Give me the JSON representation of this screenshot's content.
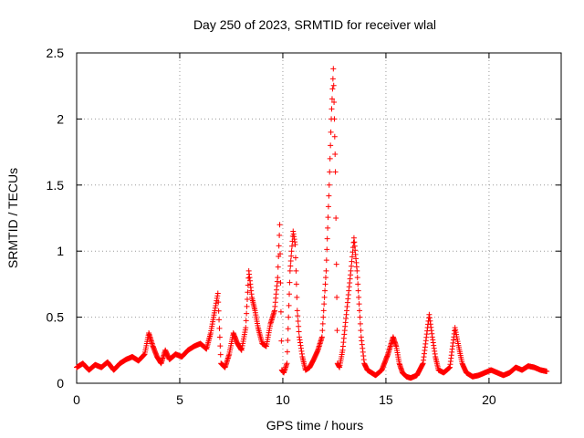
{
  "chart_data": {
    "type": "scatter",
    "title": "Day 250 of 2023, SRMTID for receiver wlal",
    "xlabel": "GPS time / hours",
    "ylabel": "SRMTID / TECUs",
    "xlim": [
      0,
      23.5
    ],
    "ylim": [
      0,
      2.5
    ],
    "x_ticks": [
      0,
      5,
      10,
      15,
      20
    ],
    "x_tick_labels": [
      "0",
      "5",
      "10",
      "15",
      "20"
    ],
    "y_ticks": [
      0,
      0.5,
      1,
      1.5,
      2,
      2.5
    ],
    "y_tick_labels": [
      "0",
      "0.5",
      "1",
      "1.5",
      "2",
      "2.5"
    ],
    "grid": true,
    "marker": "+",
    "color": "#ff0000",
    "series": [
      {
        "name": "SRMTID",
        "x": [
          0.0,
          0.3,
          0.6,
          0.9,
          1.2,
          1.5,
          1.8,
          2.1,
          2.4,
          2.7,
          3.0,
          3.3,
          3.5,
          3.7,
          3.9,
          4.1,
          4.3,
          4.5,
          4.8,
          5.1,
          5.4,
          5.7,
          6.0,
          6.3,
          6.5,
          6.7,
          6.85,
          7.0,
          7.2,
          7.4,
          7.6,
          7.8,
          8.0,
          8.2,
          8.35,
          8.5,
          8.65,
          8.8,
          9.0,
          9.2,
          9.4,
          9.6,
          9.75,
          9.85,
          9.95,
          10.05,
          10.2,
          10.35,
          10.5,
          10.6,
          10.7,
          10.8,
          10.95,
          11.1,
          11.3,
          11.5,
          11.7,
          11.9,
          12.1,
          12.25,
          12.35,
          12.45,
          12.5,
          12.55,
          12.6,
          12.65,
          12.75,
          12.9,
          13.1,
          13.3,
          13.45,
          13.6,
          13.7,
          13.8,
          13.95,
          14.1,
          14.3,
          14.5,
          14.8,
          15.1,
          15.35,
          15.5,
          15.65,
          15.8,
          16.0,
          16.2,
          16.5,
          16.8,
          17.1,
          17.25,
          17.4,
          17.55,
          17.8,
          18.1,
          18.35,
          18.5,
          18.7,
          18.9,
          19.2,
          19.5,
          19.8,
          20.1,
          20.4,
          20.7,
          21.0,
          21.3,
          21.6,
          21.9,
          22.2,
          22.5,
          22.8
        ],
        "values": [
          0.12,
          0.15,
          0.1,
          0.14,
          0.12,
          0.16,
          0.1,
          0.15,
          0.18,
          0.2,
          0.17,
          0.22,
          0.38,
          0.28,
          0.2,
          0.15,
          0.25,
          0.18,
          0.22,
          0.2,
          0.25,
          0.28,
          0.3,
          0.26,
          0.38,
          0.55,
          0.68,
          0.15,
          0.12,
          0.22,
          0.38,
          0.3,
          0.25,
          0.42,
          0.85,
          0.65,
          0.55,
          0.42,
          0.3,
          0.28,
          0.45,
          0.55,
          0.8,
          1.2,
          0.1,
          0.08,
          0.15,
          0.85,
          1.15,
          1.05,
          0.55,
          0.35,
          0.2,
          0.1,
          0.12,
          0.18,
          0.25,
          0.35,
          0.85,
          1.5,
          2.0,
          2.38,
          2.0,
          1.6,
          0.9,
          0.15,
          0.12,
          0.25,
          0.55,
          0.85,
          1.1,
          0.85,
          0.6,
          0.35,
          0.15,
          0.1,
          0.08,
          0.06,
          0.1,
          0.22,
          0.35,
          0.28,
          0.15,
          0.08,
          0.05,
          0.04,
          0.06,
          0.15,
          0.52,
          0.35,
          0.2,
          0.1,
          0.08,
          0.12,
          0.42,
          0.3,
          0.15,
          0.08,
          0.05,
          0.06,
          0.08,
          0.1,
          0.08,
          0.06,
          0.08,
          0.12,
          0.1,
          0.13,
          0.12,
          0.1,
          0.09
        ]
      }
    ]
  }
}
